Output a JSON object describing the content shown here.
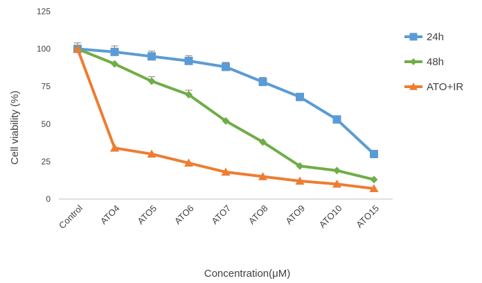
{
  "chart_data": {
    "type": "line",
    "title": "",
    "xlabel": "Concentration(μM)",
    "ylabel": "Cell viability (%)",
    "ylim": [
      0,
      125
    ],
    "yticks": [
      0,
      25,
      50,
      75,
      100,
      125
    ],
    "grid": false,
    "legend_position": "right",
    "categories": [
      "Control",
      "ATO4",
      "ATO5",
      "ATO6",
      "ATO7",
      "ATO8",
      "ATO9",
      "ATO10",
      "ATO15"
    ],
    "series": [
      {
        "name": "24h",
        "color": "#5b9bd5",
        "marker": "square",
        "values": [
          100,
          98,
          95,
          92,
          88,
          78,
          68,
          53,
          30
        ],
        "errors": [
          4,
          4,
          3.5,
          3.5,
          3,
          3,
          0,
          0,
          0
        ]
      },
      {
        "name": "48h",
        "color": "#70ad47",
        "marker": "diamond",
        "values": [
          100,
          90,
          78.5,
          69.5,
          52,
          38,
          22,
          19,
          13
        ],
        "errors": [
          0,
          0,
          3,
          3,
          0,
          0,
          0,
          0,
          0
        ]
      },
      {
        "name": "ATO+IR",
        "color": "#ed7d31",
        "marker": "triangle",
        "values": [
          100,
          34,
          30,
          24,
          18,
          15,
          12,
          10,
          7
        ],
        "errors": [
          0,
          0,
          0,
          0,
          0,
          0,
          0,
          0,
          0
        ]
      }
    ]
  }
}
